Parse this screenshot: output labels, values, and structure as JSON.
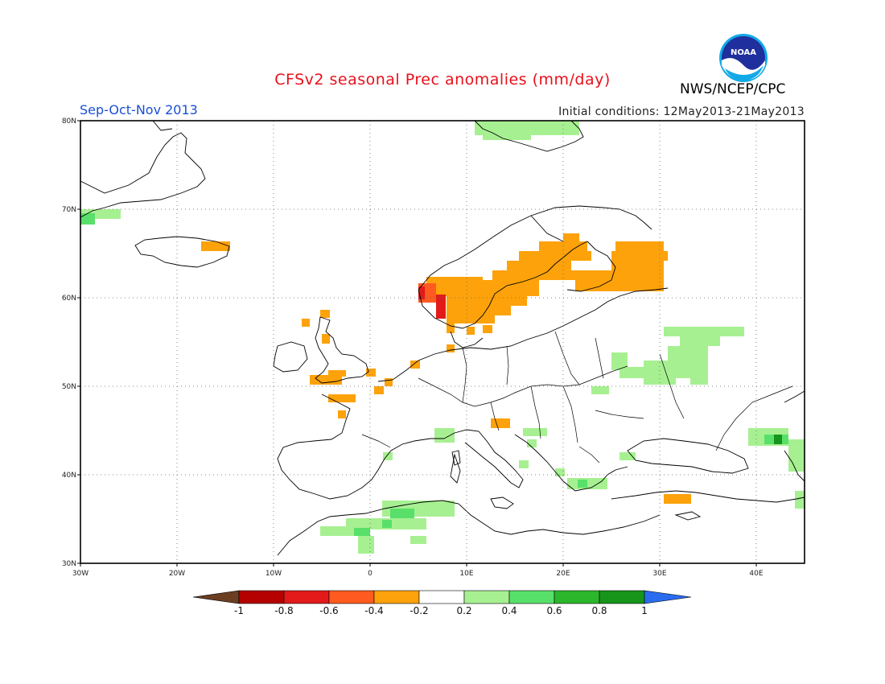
{
  "header": {
    "title": "CFSv2 seasonal Prec anomalies (mm/day)",
    "season": "Sep-Oct-Nov 2013",
    "initial_conditions": "Initial conditions: 12May2013-21May2013",
    "agency": "NWS/NCEP/CPC",
    "logo_text": "NOAA"
  },
  "map": {
    "lon_range": [
      -30,
      45
    ],
    "lat_range": [
      30,
      80
    ],
    "lat_labels": [
      "80N",
      "70N",
      "60N",
      "50N",
      "40N",
      "30N"
    ],
    "lon_labels": [
      "30W",
      "20W",
      "10W",
      "0",
      "10E",
      "20E",
      "30E",
      "40E"
    ],
    "gridlines": "dotted"
  },
  "colorbar": {
    "labels": [
      "-1",
      "-0.8",
      "-0.6",
      "-0.4",
      "-0.2",
      "0.2",
      "0.4",
      "0.6",
      "0.8",
      "1"
    ],
    "colors": [
      "#6b3e22",
      "#b40000",
      "#e21a1a",
      "#ff5a1f",
      "#fda20a",
      "#ffffff",
      "#a7f092",
      "#58e06a",
      "#2bb62b",
      "#17951a",
      "#2a6cf0"
    ]
  }
}
